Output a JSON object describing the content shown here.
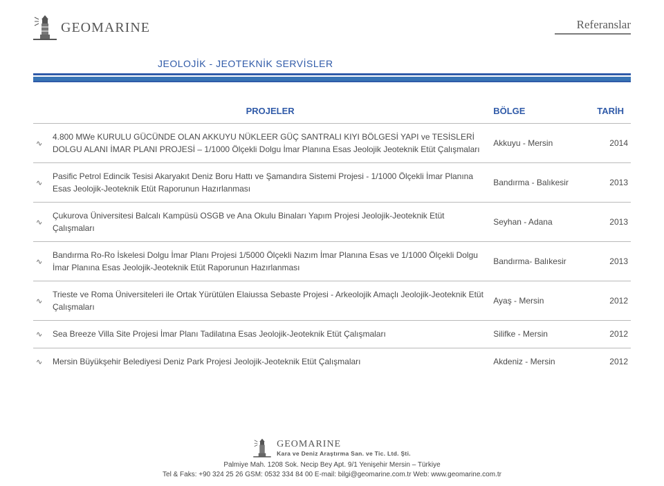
{
  "colors": {
    "accent": "#2f5aa8",
    "bar_fill": "#3874b5",
    "rule": "#b9b9b9",
    "text": "#4a4a4a",
    "brand": "#565656"
  },
  "header": {
    "brand": "GEOMARINE",
    "refs": "Referanslar"
  },
  "section_title": "JEOLOJİK - JEOTEKNİK SERVİSLER",
  "table": {
    "columns": {
      "project": "PROJELER",
      "region": "BÖLGE",
      "year": "TARİH"
    },
    "col_widths": {
      "bullet": 24,
      "region": 150,
      "year": 50
    },
    "rows": [
      {
        "desc": "4.800 MWe KURULU GÜCÜNDE OLAN AKKUYU NÜKLEER GÜÇ SANTRALI KIYI BÖLGESİ YAPI ve TESİSLERİ DOLGU ALANI İMAR PLANI PROJESİ – 1/1000 Ölçekli Dolgu İmar Planına Esas Jeolojik Jeoteknik Etüt Çalışmaları",
        "region": "Akkuyu - Mersin",
        "year": "2014"
      },
      {
        "desc": "Pasific Petrol Edincik Tesisi Akaryakıt Deniz Boru Hattı ve Şamandıra Sistemi Projesi - 1/1000 Ölçekli İmar Planına Esas Jeolojik-Jeoteknik Etüt Raporunun Hazırlanması",
        "region": "Bandırma - Balıkesir",
        "year": "2013"
      },
      {
        "desc": "Çukurova Üniversitesi Balcalı Kampüsü OSGB ve Ana Okulu Binaları Yapım Projesi Jeolojik-Jeoteknik Etüt Çalışmaları",
        "region": "Seyhan - Adana",
        "year": "2013"
      },
      {
        "desc": "Bandırma Ro-Ro İskelesi Dolgu İmar Planı Projesi 1/5000 Ölçekli Nazım İmar Planına Esas ve 1/1000 Ölçekli Dolgu İmar Planına Esas Jeolojik-Jeoteknik Etüt Raporunun Hazırlanması",
        "region": "Bandırma- Balıkesir",
        "year": "2013"
      },
      {
        "desc": "Trieste ve Roma Üniversiteleri ile Ortak Yürütülen Elaiussa Sebaste Projesi - Arkeolojik Amaçlı Jeolojik-Jeoteknik Etüt Çalışmaları",
        "region": "Ayaş - Mersin",
        "year": "2012"
      },
      {
        "desc": "Sea Breeze Villa Site Projesi İmar Planı Tadilatına Esas Jeolojik-Jeoteknik Etüt Çalışmaları",
        "region": "Silifke - Mersin",
        "year": "2012"
      },
      {
        "desc": "Mersin Büyükşehir Belediyesi Deniz Park Projesi Jeolojik-Jeoteknik Etüt Çalışmaları",
        "region": "Akdeniz - Mersin",
        "year": "2012"
      }
    ]
  },
  "footer": {
    "brand": "GEOMARINE",
    "tagline": "Kara ve Deniz Araştırma San. ve Tic. Ltd. Şti.",
    "line1": "Palmiye Mah. 1208 Sok. Necip Bey Apt. 9/1 Yenişehir Mersin – Türkiye",
    "line2": "Tel & Faks: +90 324 25 26 GSM: 0532 334 84 00 E-mail: bilgi@geomarine.com.tr Web: www.geomarine.com.tr"
  }
}
